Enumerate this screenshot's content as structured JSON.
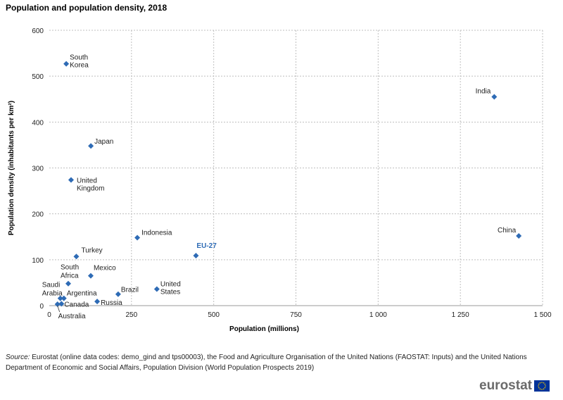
{
  "title": "Population and population density, 2018",
  "source": {
    "label": "Source:",
    "text": " Eurostat (online data codes: demo_gind and tps00003), the Food and Agriculture Organisation of the United Nations (FAOSTAT: Inputs) and the United Nations Department of Economic and Social Affairs, Population Division (World Population Prospects 2019)"
  },
  "logo": {
    "text": "eurostat",
    "flag_color": "#003399",
    "star_color": "#ffcc00"
  },
  "colors": {
    "marker": "#2e6bb5",
    "eu_label": "#2e6bb5",
    "grid": "#bfbfbf"
  },
  "chart_data": {
    "type": "scatter",
    "xlabel": "Population (millions)",
    "ylabel": "Population density (inhabitants per km²)",
    "xlim": [
      0,
      1500
    ],
    "ylim": [
      0,
      600
    ],
    "xticks": [
      0,
      250,
      500,
      750,
      1000,
      1250,
      1500
    ],
    "xtick_labels": [
      "0",
      "250",
      "500",
      "750",
      "1 000",
      "1 250",
      "1 500"
    ],
    "yticks": [
      0,
      100,
      200,
      300,
      400,
      500,
      600
    ],
    "ytick_labels": [
      "0",
      "100",
      "200",
      "300",
      "400",
      "500",
      "600"
    ],
    "grid": true,
    "points": [
      {
        "label": "South Korea",
        "x": 51.6,
        "y": 527
      },
      {
        "label": "India",
        "x": 1353,
        "y": 455
      },
      {
        "label": "Japan",
        "x": 126.5,
        "y": 348
      },
      {
        "label": "United Kingdom",
        "x": 66.3,
        "y": 274
      },
      {
        "label": "Indonesia",
        "x": 267.7,
        "y": 148
      },
      {
        "label": "China",
        "x": 1427.6,
        "y": 152
      },
      {
        "label": "EU-27",
        "x": 446,
        "y": 109
      },
      {
        "label": "Turkey",
        "x": 82.3,
        "y": 107
      },
      {
        "label": "South Africa",
        "x": 57.8,
        "y": 48
      },
      {
        "label": "Mexico",
        "x": 126.2,
        "y": 65
      },
      {
        "label": "United States",
        "x": 327.1,
        "y": 36
      },
      {
        "label": "Brazil",
        "x": 209.5,
        "y": 25
      },
      {
        "label": "Saudi Arabia",
        "x": 33.7,
        "y": 16
      },
      {
        "label": "Argentina",
        "x": 44.4,
        "y": 16
      },
      {
        "label": "Russia",
        "x": 145.7,
        "y": 9
      },
      {
        "label": "Canada",
        "x": 37.1,
        "y": 4
      },
      {
        "label": "Australia",
        "x": 25,
        "y": 3
      }
    ]
  }
}
